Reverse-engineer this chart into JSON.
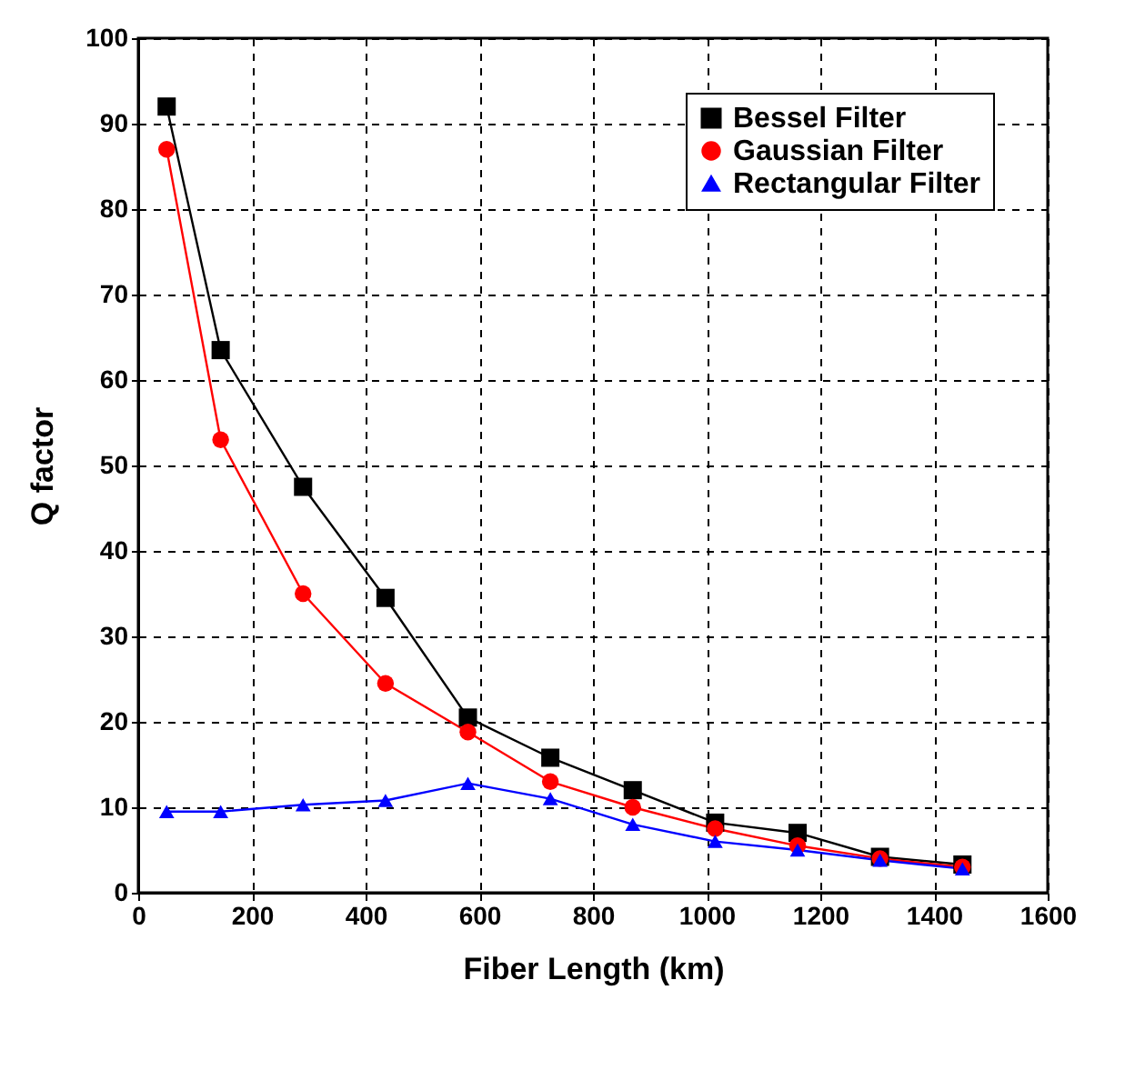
{
  "chart_data": {
    "type": "line",
    "xlabel": "Fiber Length (km)",
    "ylabel": "Q factor",
    "x": [
      50,
      145,
      290,
      435,
      580,
      725,
      870,
      1015,
      1160,
      1305,
      1450
    ],
    "series": [
      {
        "name": "Bessel Filter",
        "color": "#000000",
        "marker": "square",
        "values": [
          92,
          63.5,
          47.5,
          34.5,
          20.5,
          15.8,
          12,
          8.2,
          7,
          4.2,
          3.3
        ]
      },
      {
        "name": "Gaussian Filter",
        "color": "#ff0000",
        "marker": "circle",
        "values": [
          87,
          53,
          35,
          24.5,
          18.8,
          13,
          10,
          7.5,
          5.5,
          4,
          3
        ]
      },
      {
        "name": "Rectangular Filter",
        "color": "#0000ff",
        "marker": "triangle",
        "values": [
          9.5,
          9.5,
          10.3,
          10.8,
          12.8,
          11,
          8,
          6,
          5,
          3.8,
          2.8
        ]
      }
    ],
    "xlim": [
      0,
      1600
    ],
    "xticks": [
      0,
      200,
      400,
      600,
      800,
      1000,
      1200,
      1400,
      1600
    ],
    "ylim": [
      0,
      100
    ],
    "yticks": [
      0,
      10,
      20,
      30,
      40,
      50,
      60,
      70,
      80,
      90,
      100
    ],
    "grid": true,
    "legend": "top right",
    "line_style": "solid"
  }
}
